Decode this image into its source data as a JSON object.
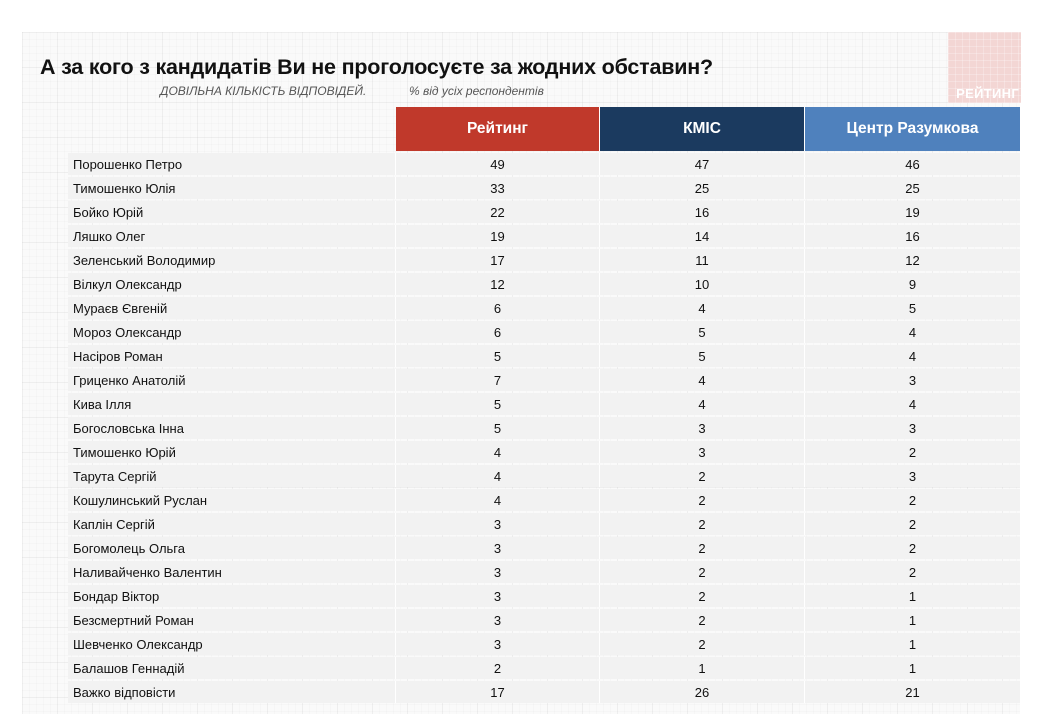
{
  "title": "А за кого з кандидатів Ви не проголосуєте за жодних обставин?",
  "subtitle": {
    "note": "ДОВІЛЬНА КІЛЬКІСТЬ ВІДПОВІДЕЙ.",
    "unit": "% від усіх респондентів"
  },
  "logo": {
    "text": "РЕЙТИНГ",
    "color": "#f3d6d4"
  },
  "columns": [
    {
      "label": "Рейтинг",
      "color": "#c0392b"
    },
    {
      "label": "КМІС",
      "color": "#1b3a5f"
    },
    {
      "label": "Центр Разумкова",
      "color": "#4f81bd"
    }
  ],
  "rows": [
    {
      "name": "Порошенко Петро",
      "values": [
        "49",
        "47",
        "46"
      ]
    },
    {
      "name": "Тимошенко Юлія",
      "values": [
        "33",
        "25",
        "25"
      ]
    },
    {
      "name": "Бойко Юрій",
      "values": [
        "22",
        "16",
        "19"
      ]
    },
    {
      "name": "Ляшко Олег",
      "values": [
        "19",
        "14",
        "16"
      ]
    },
    {
      "name": "Зеленський Володимир",
      "values": [
        "17",
        "11",
        "12"
      ]
    },
    {
      "name": "Вілкул Олександр",
      "values": [
        "12",
        "10",
        "9"
      ]
    },
    {
      "name": "Мураєв Євгеній",
      "values": [
        "6",
        "4",
        "5"
      ]
    },
    {
      "name": "Мороз Олександр",
      "values": [
        "6",
        "5",
        "4"
      ]
    },
    {
      "name": "Насіров Роман",
      "values": [
        "5",
        "5",
        "4"
      ]
    },
    {
      "name": "Гриценко Анатолій",
      "values": [
        "7",
        "4",
        "3"
      ]
    },
    {
      "name": "Кива Ілля",
      "values": [
        "5",
        "4",
        "4"
      ]
    },
    {
      "name": "Богословська Інна",
      "values": [
        "5",
        "3",
        "3"
      ]
    },
    {
      "name": "Тимошенко Юрій",
      "values": [
        "4",
        "3",
        "2"
      ]
    },
    {
      "name": "Тарута Сергій",
      "values": [
        "4",
        "2",
        "3"
      ]
    },
    {
      "name": "Кошулинський Руслан",
      "values": [
        "4",
        "2",
        "2"
      ]
    },
    {
      "name": "Каплін Сергій",
      "values": [
        "3",
        "2",
        "2"
      ]
    },
    {
      "name": "Богомолець Ольга",
      "values": [
        "3",
        "2",
        "2"
      ]
    },
    {
      "name": "Наливайченко Валентин",
      "values": [
        "3",
        "2",
        "2"
      ]
    },
    {
      "name": "Бондар Віктор",
      "values": [
        "3",
        "2",
        "1"
      ]
    },
    {
      "name": "Безсмертний Роман",
      "values": [
        "3",
        "2",
        "1"
      ]
    },
    {
      "name": "Шевченко Олександр",
      "values": [
        "3",
        "2",
        "1"
      ]
    },
    {
      "name": "Балашов Геннадій",
      "values": [
        "2",
        "1",
        "1"
      ]
    },
    {
      "name": "Важко відповісти",
      "values": [
        "17",
        "26",
        "21"
      ]
    }
  ],
  "chart_data": {
    "type": "table",
    "title": "А за кого з кандидатів Ви не проголосуєте за жодних обставин?",
    "subtitle": "ДОВІЛЬНА КІЛЬКІСТЬ ВІДПОВІДЕЙ. % від усіх респондентів",
    "categories": [
      "Порошенко Петро",
      "Тимошенко Юлія",
      "Бойко Юрій",
      "Ляшко Олег",
      "Зеленський Володимир",
      "Вілкул Олександр",
      "Мураєв Євгеній",
      "Мороз Олександр",
      "Насіров Роман",
      "Гриценко Анатолій",
      "Кива Ілля",
      "Богословська Інна",
      "Тимошенко Юрій",
      "Тарута Сергій",
      "Кошулинський Руслан",
      "Каплін Сергій",
      "Богомолець Ольга",
      "Наливайченко Валентин",
      "Бондар Віктор",
      "Безсмертний Роман",
      "Шевченко Олександр",
      "Балашов Геннадій",
      "Важко відповісти"
    ],
    "series": [
      {
        "name": "Рейтинг",
        "values": [
          49,
          33,
          22,
          19,
          17,
          12,
          6,
          6,
          5,
          7,
          5,
          5,
          4,
          4,
          4,
          3,
          3,
          3,
          3,
          3,
          3,
          2,
          17
        ]
      },
      {
        "name": "КМІС",
        "values": [
          47,
          25,
          16,
          14,
          11,
          10,
          4,
          5,
          5,
          4,
          4,
          3,
          3,
          2,
          2,
          2,
          2,
          2,
          2,
          2,
          2,
          1,
          26
        ]
      },
      {
        "name": "Центр Разумкова",
        "values": [
          46,
          25,
          19,
          16,
          12,
          9,
          5,
          4,
          4,
          3,
          4,
          3,
          2,
          3,
          2,
          2,
          2,
          2,
          1,
          1,
          1,
          1,
          21
        ]
      }
    ]
  }
}
